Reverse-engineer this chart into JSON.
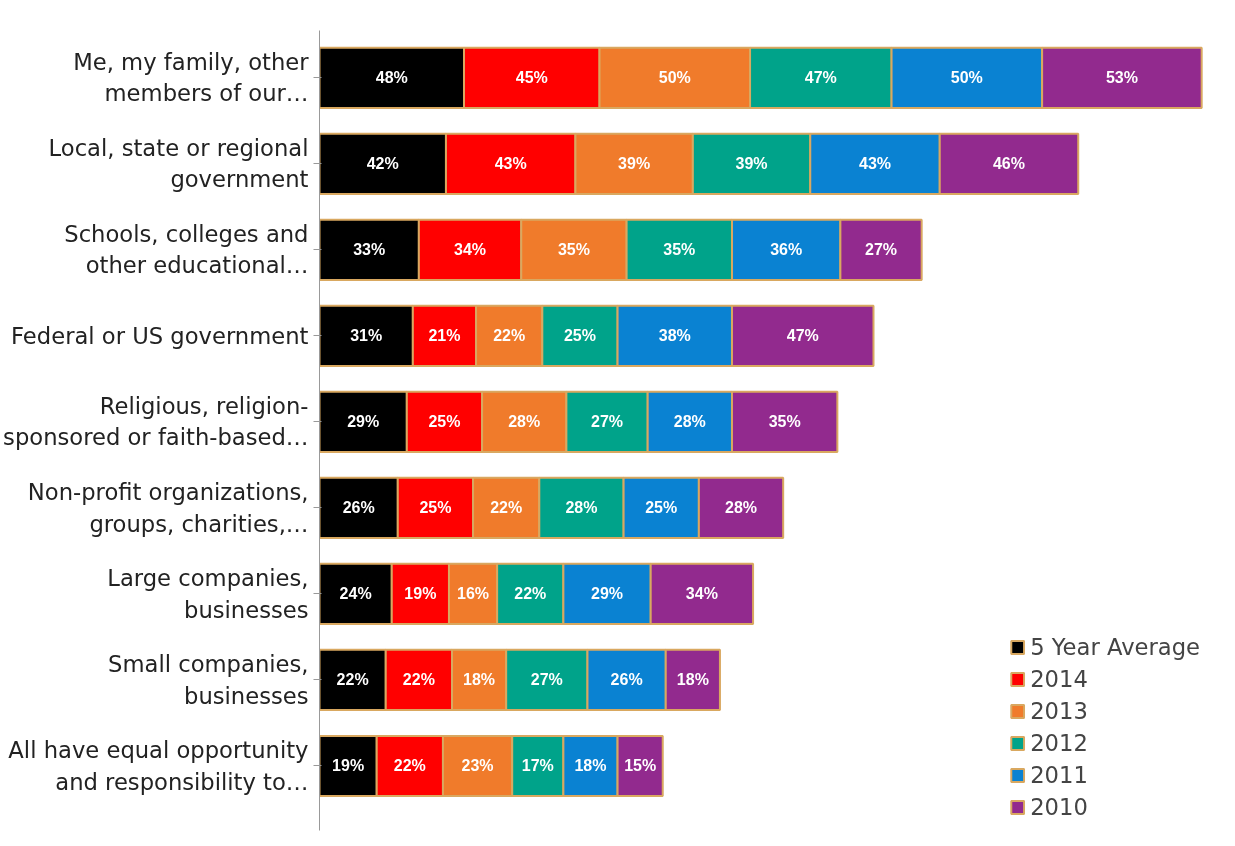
{
  "chart_data": {
    "type": "bar",
    "orientation": "horizontal",
    "stacked": true,
    "legend": "bottom right",
    "grid": false,
    "categories": [
      "Me, my family, other\nmembers of our…",
      "Local, state or regional\ngovernment",
      "Schools, colleges and\nother educational…",
      "Federal or US government",
      "Religious, religion-\nsponsored or faith-based…",
      "Non-profit organizations,\ngroups, charities,…",
      "Large companies,\nbusinesses",
      "Small companies,\nbusinesses",
      "All have equal opportunity\nand responsibility to…"
    ],
    "series": [
      {
        "name": "5 Year Average",
        "color": "#000000",
        "values": [
          48,
          42,
          33,
          31,
          29,
          26,
          24,
          22,
          19
        ],
        "value_labels": [
          "48%",
          "42%",
          "33%",
          "31%",
          "29%",
          "26%",
          "24%",
          "22%",
          "19%"
        ]
      },
      {
        "name": "2014",
        "color": "#ff0000",
        "values": [
          45,
          43,
          34,
          21,
          25,
          25,
          19,
          22,
          22
        ],
        "value_labels": [
          "45%",
          "43%",
          "34%",
          "21%",
          "25%",
          "25%",
          "19%",
          "22%",
          "22%"
        ]
      },
      {
        "name": "2013",
        "color": "#f07b2b",
        "values": [
          50,
          39,
          35,
          22,
          28,
          22,
          16,
          18,
          23
        ],
        "value_labels": [
          "50%",
          "39%",
          "35%",
          "22%",
          "28%",
          "22%",
          "16%",
          "18%",
          "23%"
        ]
      },
      {
        "name": "2012",
        "color": "#00a38a",
        "values": [
          47,
          39,
          35,
          25,
          27,
          28,
          22,
          27,
          17
        ],
        "value_labels": [
          "47%",
          "39%",
          "35%",
          "25%",
          "27%",
          "28%",
          "22%",
          "27%",
          "17%"
        ]
      },
      {
        "name": "2011",
        "color": "#0a82d2",
        "values": [
          50,
          43,
          36,
          38,
          28,
          25,
          29,
          26,
          18
        ],
        "value_labels": [
          "50%",
          "43%",
          "36%",
          "38%",
          "28%",
          "25%",
          "29%",
          "26%",
          "18%"
        ]
      },
      {
        "name": "2010",
        "color": "#922a8e",
        "values": [
          53,
          46,
          27,
          47,
          35,
          28,
          34,
          18,
          15
        ],
        "value_labels": [
          "53%",
          "46%",
          "27%",
          "47%",
          "35%",
          "28%",
          "34%",
          "18%",
          "15%"
        ]
      }
    ]
  }
}
